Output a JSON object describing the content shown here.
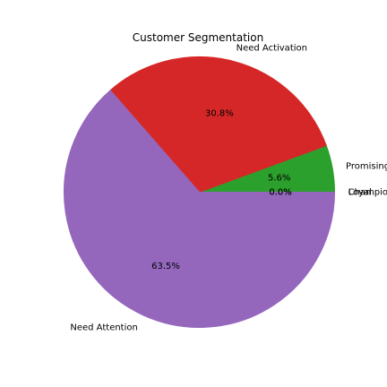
{
  "chart_data": {
    "type": "pie",
    "title": "Customer Segmentation",
    "slices": [
      {
        "label": "Champions",
        "value": 0.0,
        "pct_label": "0.0%",
        "color": "#1f77b4"
      },
      {
        "label": "Loyal",
        "value": 0.0,
        "pct_label": "0.0%",
        "color": "#ff7f0e"
      },
      {
        "label": "Promising",
        "value": 5.6,
        "pct_label": "5.6%",
        "color": "#2ca02c"
      },
      {
        "label": "Need Activation",
        "value": 30.8,
        "pct_label": "30.8%",
        "color": "#d62728"
      },
      {
        "label": "Need Attention",
        "value": 63.5,
        "pct_label": "63.5%",
        "color": "#9467bd"
      }
    ],
    "start_angle_deg": 0,
    "direction": "counterclockwise"
  }
}
